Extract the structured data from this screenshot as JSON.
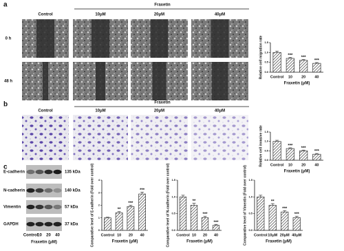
{
  "figure": {
    "a": {
      "label": "a",
      "header": "Fraxetin",
      "columns": [
        "Control",
        "10μM",
        "20μM",
        "40μM"
      ],
      "rows": [
        "0 h",
        "48 h"
      ]
    },
    "b": {
      "label": "b",
      "header": "Fraxetin",
      "columns": [
        "Control",
        "10μM",
        "20μM",
        "40μM"
      ]
    },
    "c": {
      "label": "c",
      "proteins": [
        "E-cadherin",
        "N-cadherin",
        "Vimentin",
        "GAPDH"
      ],
      "sizes": [
        "135 kDa",
        "140 kDa",
        "57 kDa",
        "37 kDa"
      ],
      "lanes": [
        "Control",
        "10",
        "20",
        "40"
      ],
      "lane_title": "Fraxetin (μM)"
    }
  },
  "chart_data": [
    {
      "type": "bar",
      "ylabel": "Relative cell migration rate",
      "xlabel": "Fraxetin (μM)",
      "categories": [
        "Control",
        "10",
        "20",
        "40"
      ],
      "values": [
        1.0,
        0.7,
        0.6,
        0.45
      ],
      "errors": [
        0.07,
        0.05,
        0.04,
        0.04
      ],
      "significance": [
        null,
        "***",
        "***",
        "***"
      ],
      "color": "#333333",
      "ylim": [
        0,
        1.5
      ],
      "yticks": [
        {
          "value": 0,
          "label": "0.0"
        },
        {
          "value": 0.5,
          "label": "0.5"
        },
        {
          "value": 1,
          "label": "1.0"
        },
        {
          "value": 1.5,
          "label": "1.5"
        }
      ]
    },
    {
      "type": "bar",
      "ylabel": "Relative cell invasive rate",
      "xlabel": "Fraxetin (μM)",
      "categories": [
        "Control",
        "10",
        "20",
        "40"
      ],
      "values": [
        1.0,
        0.62,
        0.5,
        0.32
      ],
      "errors": [
        0.06,
        0.04,
        0.04,
        0.04
      ],
      "significance": [
        null,
        "***",
        "***",
        "***"
      ],
      "color": "#333333",
      "ylim": [
        0,
        1.5
      ],
      "yticks": [
        {
          "value": 0,
          "label": "0.0"
        },
        {
          "value": 0.5,
          "label": "0.5"
        },
        {
          "value": 1,
          "label": "1.0"
        },
        {
          "value": 1.5,
          "label": "1.5"
        }
      ]
    },
    {
      "type": "bar",
      "ylabel": "Comparative level of E-cadherin (Fold over control)",
      "xlabel": "Fraxetin (μM)",
      "categories": [
        "Control",
        "10",
        "20",
        "40"
      ],
      "values": [
        1.0,
        1.4,
        1.9,
        2.9
      ],
      "errors": [
        0.05,
        0.1,
        0.1,
        0.15
      ],
      "significance": [
        null,
        "**",
        "***",
        "***"
      ],
      "color": "#333333",
      "ylim": [
        0,
        4
      ],
      "yticks": [
        0,
        1,
        2,
        3,
        4
      ]
    },
    {
      "type": "bar",
      "ylabel": "Comparative level of N-cadherin (Fold over control)",
      "xlabel": "Fraxetin (μM)",
      "categories": [
        "Control",
        "10",
        "20",
        "40"
      ],
      "values": [
        1.0,
        0.75,
        0.38,
        0.15
      ],
      "errors": [
        0.05,
        0.06,
        0.04,
        0.03
      ],
      "significance": [
        null,
        "**",
        "***",
        "***"
      ],
      "color": "#333333",
      "ylim": [
        0,
        1.5
      ],
      "yticks": [
        {
          "value": 0,
          "label": "0.0"
        },
        {
          "value": 0.5,
          "label": "0.5"
        },
        {
          "value": 1,
          "label": "1.0"
        },
        {
          "value": 1.5,
          "label": "1.5"
        }
      ]
    },
    {
      "type": "bar",
      "ylabel": "Comparative level of Vimentin (Fold over control)",
      "xlabel": "Fraxetin (μM)",
      "categories": [
        "Control",
        "10μM",
        "20μM",
        "40μM"
      ],
      "values": [
        1.0,
        0.75,
        0.55,
        0.38
      ],
      "errors": [
        0.05,
        0.05,
        0.04,
        0.04
      ],
      "significance": [
        null,
        "**",
        "***",
        "***"
      ],
      "color": "#333333",
      "ylim": [
        0,
        1.5
      ],
      "yticks": [
        {
          "value": 0,
          "label": "0.0"
        },
        {
          "value": 0.5,
          "label": "0.5"
        },
        {
          "value": 1,
          "label": "1.0"
        },
        {
          "value": 1.5,
          "label": "1.5"
        }
      ]
    }
  ]
}
